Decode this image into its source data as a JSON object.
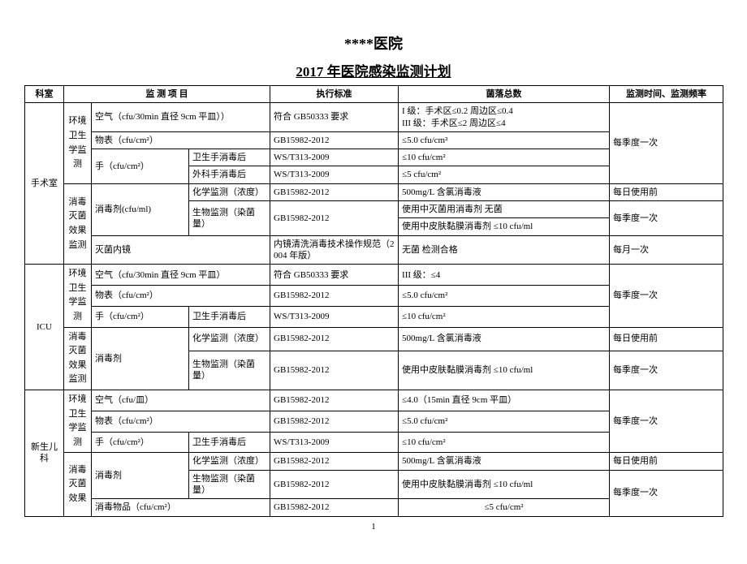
{
  "titles": {
    "hospital": "****医院",
    "plan": "2017 年医院感染监测计划"
  },
  "headers": {
    "dept": "科室",
    "item": "监 测 项 目",
    "standard": "执行标准",
    "colony": "菌落总数",
    "freq": "监测时间、监测频率"
  },
  "labels": {
    "envLabel": "环境卫生学监测",
    "disLabel": "消毒灭菌效果监测",
    "disLabel2": "消毒灭菌效果"
  },
  "dept": {
    "or": "手术室",
    "icu": "ICU",
    "nicu": "新生儿科"
  },
  "or": {
    "r1c3": "空气（cfu/30min 直径 9cm 平皿））",
    "r1c5": "符合 GB50333 要求",
    "r1c6": "I 级：手术区≤0.2  周边区≤0.4\nIII 级：手术区≤2  周边区≤4",
    "r2c3": "物表（cfu/cm²）",
    "r2c5": "GB15982-2012",
    "r2c6": "≤5.0 cfu/cm²",
    "r3c3": "手（cfu/cm²）",
    "r3c4": "卫生手消毒后",
    "r3c5": "WS/T313-2009",
    "r3c6": "≤10 cfu/cm²",
    "r4c4": "外科手消毒后",
    "r4c5": "WS/T313-2009",
    "r4c6": "≤5 cfu/cm²",
    "r5c3": "消毒剂(cfu/ml)",
    "r5c4": "化学监测（浓度）",
    "r5c5": "GB15982-2012",
    "r5c6": "500mg/L 含氯消毒液",
    "r6c4": "生物监测（染菌量）",
    "r6c5": "GB15982-2012",
    "r6c6a": "使用中灭菌用消毒剂    无菌",
    "r6c6b": "使用中皮肤黏膜消毒剂 ≤10 cfu/ml",
    "r7c3": "灭菌内镜",
    "r7c5": "内镜清洗消毒技术操作规范（2004 年版）",
    "r7c6": "无菌 检测合格",
    "freqQuarter": "每季度一次",
    "freqBefore": "每日使用前",
    "freqMonth": "每月一次"
  },
  "icu": {
    "r1c3": "空气（cfu/30min 直径 9cm 平皿）",
    "r1c5": "符合 GB50333 要求",
    "r1c6": "III 级：≤4",
    "r2c3": "物表（cfu/cm²）",
    "r2c5": "GB15982-2012",
    "r2c6": "≤5.0 cfu/cm²",
    "r3c3": "手（cfu/cm²）",
    "r3c4": "卫生手消毒后",
    "r3c5": "WS/T313-2009",
    "r3c6": "≤10 cfu/cm²",
    "r4c3": "消毒剂",
    "r4c4": "化学监测（浓度）",
    "r4c5": "GB15982-2012",
    "r4c6": "500mg/L 含氯消毒液",
    "r5c4": "生物监测（染菌量）",
    "r5c5": "GB15982-2012",
    "r5c6": "使用中皮肤黏膜消毒剂 ≤10 cfu/ml",
    "freqQuarter": "每季度一次",
    "freqBefore": "每日使用前"
  },
  "nicu": {
    "r1c3": "空气（cfu/皿）",
    "r1c5": "GB15982-2012",
    "r1c6": "≤4.0（15min 直径 9cm 平皿）",
    "r2c3": "物表（cfu/cm²）",
    "r2c5": "GB15982-2012",
    "r2c6": "≤5.0 cfu/cm²",
    "r3c3": "手（cfu/cm²）",
    "r3c4": "卫生手消毒后",
    "r3c5": "WS/T313-2009",
    "r3c6": "≤10 cfu/cm²",
    "r4c3": "消毒剂",
    "r4c4": "化学监测（浓度）",
    "r4c5": "GB15982-2012",
    "r4c6": "500mg/L 含氯消毒液",
    "r5c4": "生物监测（染菌量）",
    "r5c5": "GB15982-2012",
    "r5c6": "使用中皮肤黏膜消毒剂 ≤10 cfu/ml",
    "r6c3": "消毒物品（cfu/cm²）",
    "r6c5": "GB15982-2012",
    "r6c6": "≤5 cfu/cm²",
    "freqQuarter": "每季度一次",
    "freqBefore": "每日使用前"
  },
  "pageNum": "1"
}
